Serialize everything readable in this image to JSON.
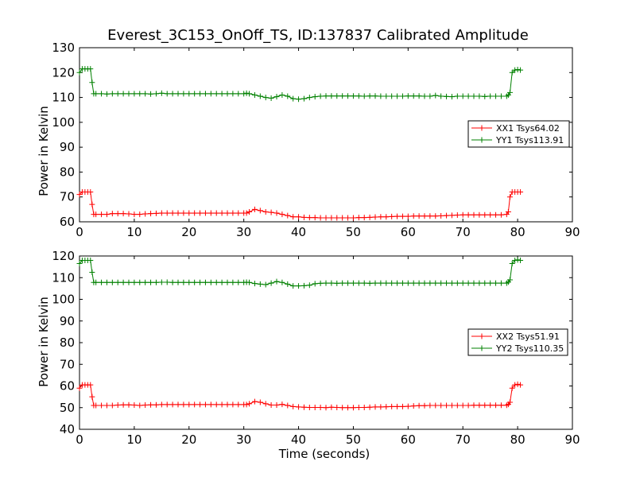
{
  "title": "Everest_3C153_OnOff_TS, ID:137837 Calibrated Amplitude",
  "xlabel": "Time (seconds)",
  "colors": {
    "xx": "#ff0000",
    "yy": "#008000"
  },
  "chart_data": [
    {
      "type": "line",
      "ylabel": "Power in Kelvin",
      "xlim": [
        0,
        90
      ],
      "ylim": [
        60,
        130
      ],
      "xticks": [
        0,
        10,
        20,
        30,
        40,
        50,
        60,
        70,
        80,
        90
      ],
      "yticks": [
        60,
        70,
        80,
        90,
        100,
        110,
        120,
        130
      ],
      "grid": false,
      "legend_position": "center-right",
      "series": [
        {
          "name": "XX1 Tsys64.02",
          "color": "#ff0000",
          "x": [
            0,
            0.5,
            1,
            1.5,
            2,
            2.3,
            2.6,
            3,
            4,
            5,
            6,
            7,
            8,
            9,
            10,
            11,
            12,
            13,
            14,
            15,
            16,
            17,
            18,
            19,
            20,
            21,
            22,
            23,
            24,
            25,
            26,
            27,
            28,
            29,
            30,
            30.5,
            31,
            32,
            33,
            34,
            35,
            36,
            37,
            38,
            39,
            40,
            41,
            42,
            43,
            44,
            45,
            46,
            47,
            48,
            49,
            50,
            51,
            52,
            53,
            54,
            55,
            56,
            57,
            58,
            59,
            60,
            61,
            62,
            63,
            64,
            65,
            66,
            67,
            68,
            69,
            70,
            71,
            72,
            73,
            74,
            75,
            76,
            77,
            78,
            78.3,
            78.6,
            79,
            79.5,
            80,
            80.5
          ],
          "values": [
            71,
            72,
            72,
            72,
            72,
            67,
            63,
            63,
            63,
            63,
            63.3,
            63.3,
            63.3,
            63.2,
            63,
            63,
            63.2,
            63.3,
            63.4,
            63.5,
            63.5,
            63.5,
            63.5,
            63.5,
            63.5,
            63.5,
            63.5,
            63.5,
            63.5,
            63.5,
            63.5,
            63.5,
            63.5,
            63.5,
            63.5,
            63.5,
            64,
            65,
            64.5,
            64,
            63.8,
            63.5,
            63,
            62.5,
            62,
            62,
            61.8,
            61.7,
            61.7,
            61.6,
            61.6,
            61.6,
            61.6,
            61.6,
            61.6,
            61.6,
            61.7,
            61.7,
            61.8,
            61.9,
            62,
            62,
            62.1,
            62.2,
            62.2,
            62.2,
            62.3,
            62.3,
            62.3,
            62.3,
            62.3,
            62.4,
            62.5,
            62.6,
            62.7,
            62.8,
            62.8,
            62.8,
            62.8,
            62.8,
            62.8,
            62.8,
            62.8,
            63,
            64,
            70,
            72,
            72,
            72,
            72
          ]
        },
        {
          "name": "YY1 Tsys113.91",
          "color": "#008000",
          "x": [
            0,
            0.5,
            1,
            1.5,
            2,
            2.3,
            2.6,
            3,
            4,
            5,
            6,
            7,
            8,
            9,
            10,
            11,
            12,
            13,
            14,
            15,
            16,
            17,
            18,
            19,
            20,
            21,
            22,
            23,
            24,
            25,
            26,
            27,
            28,
            29,
            30,
            30.5,
            31,
            32,
            33,
            34,
            35,
            36,
            37,
            38,
            39,
            40,
            41,
            42,
            43,
            44,
            45,
            46,
            47,
            48,
            49,
            50,
            51,
            52,
            53,
            54,
            55,
            56,
            57,
            58,
            59,
            60,
            61,
            62,
            63,
            64,
            65,
            66,
            67,
            68,
            69,
            70,
            71,
            72,
            73,
            74,
            75,
            76,
            77,
            78,
            78.3,
            78.6,
            79,
            79.5,
            80,
            80.5
          ],
          "values": [
            120,
            121.5,
            121.5,
            121.5,
            121.5,
            116,
            111.5,
            111.5,
            111.5,
            111.4,
            111.5,
            111.5,
            111.5,
            111.5,
            111.5,
            111.5,
            111.5,
            111.4,
            111.5,
            111.7,
            111.5,
            111.5,
            111.5,
            111.5,
            111.5,
            111.5,
            111.5,
            111.5,
            111.5,
            111.5,
            111.5,
            111.5,
            111.5,
            111.5,
            111.5,
            111.7,
            111.5,
            111,
            110.5,
            110,
            109.7,
            110.3,
            111,
            110.5,
            109.5,
            109.3,
            109.5,
            110,
            110.3,
            110.5,
            110.6,
            110.6,
            110.6,
            110.6,
            110.6,
            110.6,
            110.6,
            110.5,
            110.6,
            110.6,
            110.5,
            110.5,
            110.5,
            110.5,
            110.5,
            110.6,
            110.6,
            110.6,
            110.5,
            110.5,
            110.8,
            110.5,
            110.4,
            110.3,
            110.5,
            110.5,
            110.5,
            110.5,
            110.5,
            110.4,
            110.5,
            110.5,
            110.5,
            110.5,
            111,
            112,
            120,
            121,
            121.2,
            121
          ]
        }
      ]
    },
    {
      "type": "line",
      "ylabel": "Power in Kelvin",
      "xlabel": "Time (seconds)",
      "xlim": [
        0,
        90
      ],
      "ylim": [
        40,
        120
      ],
      "xticks": [
        0,
        10,
        20,
        30,
        40,
        50,
        60,
        70,
        80,
        90
      ],
      "yticks": [
        40,
        50,
        60,
        70,
        80,
        90,
        100,
        110,
        120
      ],
      "grid": false,
      "legend_position": "center-right",
      "series": [
        {
          "name": "XX2 Tsys51.91",
          "color": "#ff0000",
          "x": [
            0,
            0.5,
            1,
            1.5,
            2,
            2.3,
            2.6,
            3,
            4,
            5,
            6,
            7,
            8,
            9,
            10,
            11,
            12,
            13,
            14,
            15,
            16,
            17,
            18,
            19,
            20,
            21,
            22,
            23,
            24,
            25,
            26,
            27,
            28,
            29,
            30,
            30.5,
            31,
            32,
            33,
            34,
            35,
            36,
            37,
            38,
            39,
            40,
            41,
            42,
            43,
            44,
            45,
            46,
            47,
            48,
            49,
            50,
            51,
            52,
            53,
            54,
            55,
            56,
            57,
            58,
            59,
            60,
            61,
            62,
            63,
            64,
            65,
            66,
            67,
            68,
            69,
            70,
            71,
            72,
            73,
            74,
            75,
            76,
            77,
            78,
            78.3,
            78.6,
            79,
            79.5,
            80,
            80.5
          ],
          "values": [
            59,
            60.5,
            60.5,
            60.5,
            60.5,
            55,
            51,
            51,
            51,
            51,
            51,
            51.2,
            51.3,
            51.3,
            51.2,
            51,
            51.2,
            51.3,
            51.3,
            51.4,
            51.4,
            51.4,
            51.4,
            51.4,
            51.4,
            51.4,
            51.4,
            51.4,
            51.4,
            51.4,
            51.4,
            51.4,
            51.4,
            51.4,
            51.4,
            51.4,
            51.8,
            52.8,
            52.5,
            51.8,
            51.2,
            51.2,
            51.5,
            51,
            50.5,
            50.3,
            50.2,
            50.1,
            50.1,
            50.1,
            50,
            50.2,
            50.1,
            50,
            50,
            50,
            50.1,
            50.1,
            50.2,
            50.3,
            50.3,
            50.4,
            50.5,
            50.5,
            50.5,
            50.6,
            50.8,
            50.9,
            50.9,
            51,
            51,
            51,
            51,
            51,
            51,
            51,
            51,
            51.1,
            51.1,
            51.1,
            51.1,
            51.1,
            51.1,
            51.1,
            51.5,
            52.5,
            59,
            60.5,
            60.8,
            60.5
          ]
        },
        {
          "name": "YY2 Tsys110.35",
          "color": "#008000",
          "x": [
            0,
            0.5,
            1,
            1.5,
            2,
            2.3,
            2.6,
            3,
            4,
            5,
            6,
            7,
            8,
            9,
            10,
            11,
            12,
            13,
            14,
            15,
            16,
            17,
            18,
            19,
            20,
            21,
            22,
            23,
            24,
            25,
            26,
            27,
            28,
            29,
            30,
            30.5,
            31,
            32,
            33,
            34,
            35,
            36,
            37,
            38,
            39,
            40,
            41,
            42,
            43,
            44,
            45,
            46,
            47,
            48,
            49,
            50,
            51,
            52,
            53,
            54,
            55,
            56,
            57,
            58,
            59,
            60,
            61,
            62,
            63,
            64,
            65,
            66,
            67,
            68,
            69,
            70,
            71,
            72,
            73,
            74,
            75,
            76,
            77,
            78,
            78.3,
            78.6,
            79,
            79.5,
            80,
            80.5
          ],
          "values": [
            116.5,
            118,
            118,
            118,
            118,
            112.5,
            107.8,
            107.8,
            107.8,
            107.8,
            107.8,
            107.8,
            107.8,
            107.8,
            107.8,
            107.8,
            107.8,
            107.8,
            107.8,
            107.9,
            107.9,
            107.8,
            107.8,
            107.8,
            107.8,
            107.8,
            107.8,
            107.8,
            107.8,
            107.8,
            107.8,
            107.8,
            107.8,
            107.8,
            107.8,
            107.9,
            107.8,
            107.3,
            107,
            106.8,
            107.5,
            108.2,
            107.8,
            107,
            106.2,
            106.2,
            106.3,
            106.5,
            107.2,
            107.4,
            107.5,
            107.5,
            107.4,
            107.5,
            107.5,
            107.5,
            107.5,
            107.5,
            107.4,
            107.5,
            107.5,
            107.5,
            107.5,
            107.5,
            107.5,
            107.5,
            107.5,
            107.5,
            107.5,
            107.5,
            107.5,
            107.5,
            107.5,
            107.5,
            107.5,
            107.5,
            107.5,
            107.5,
            107.5,
            107.5,
            107.5,
            107.5,
            107.5,
            107.5,
            108,
            109,
            116.5,
            118,
            118.2,
            118
          ]
        }
      ]
    }
  ]
}
